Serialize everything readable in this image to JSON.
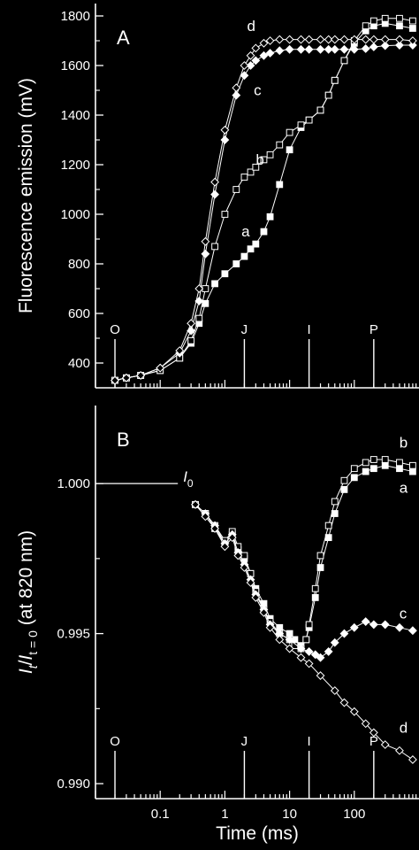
{
  "chart_data": [
    {
      "panel": "A",
      "type": "scatter",
      "x_scale": "log",
      "xlim": [
        0.01,
        1000
      ],
      "ylim": [
        300,
        1850
      ],
      "ylabel": "Fluorescence emission (mV)",
      "yticks": [
        400,
        600,
        800,
        1000,
        1200,
        1400,
        1600,
        1800
      ],
      "events": [
        {
          "label": "O",
          "x": 0.02
        },
        {
          "label": "J",
          "x": 2
        },
        {
          "label": "I",
          "x": 20
        },
        {
          "label": "P",
          "x": 200
        }
      ],
      "series": [
        {
          "name": "a",
          "marker": "filled-square",
          "x": [
            0.02,
            0.03,
            0.05,
            0.1,
            0.2,
            0.3,
            0.4,
            0.5,
            0.7,
            1,
            1.5,
            2,
            2.5,
            3,
            4,
            5,
            7,
            10,
            15,
            20,
            30,
            40,
            50,
            70,
            100,
            150,
            200,
            300,
            500,
            800
          ],
          "y": [
            330,
            340,
            350,
            370,
            420,
            480,
            560,
            640,
            720,
            760,
            800,
            830,
            860,
            880,
            930,
            990,
            1120,
            1260,
            1350,
            1380,
            1420,
            1480,
            1540,
            1620,
            1690,
            1740,
            1760,
            1770,
            1760,
            1750
          ]
        },
        {
          "name": "b",
          "marker": "open-square",
          "x": [
            0.02,
            0.03,
            0.05,
            0.1,
            0.2,
            0.3,
            0.4,
            0.5,
            0.7,
            1,
            1.5,
            2,
            2.5,
            3,
            4,
            5,
            7,
            10,
            15,
            20,
            30,
            40,
            50,
            70,
            100,
            150,
            200,
            300,
            500,
            800
          ],
          "y": [
            330,
            340,
            350,
            370,
            420,
            490,
            580,
            700,
            870,
            1000,
            1100,
            1150,
            1170,
            1190,
            1220,
            1240,
            1280,
            1330,
            1360,
            1380,
            1420,
            1480,
            1540,
            1620,
            1700,
            1760,
            1780,
            1790,
            1790,
            1780
          ]
        },
        {
          "name": "c",
          "marker": "filled-diamond",
          "x": [
            0.02,
            0.03,
            0.05,
            0.1,
            0.2,
            0.3,
            0.4,
            0.5,
            0.7,
            1,
            1.5,
            2,
            2.5,
            3,
            4,
            5,
            7,
            10,
            15,
            20,
            30,
            40,
            50,
            70,
            100,
            150,
            200,
            300,
            500,
            800
          ],
          "y": [
            330,
            340,
            350,
            380,
            440,
            530,
            650,
            840,
            1080,
            1300,
            1480,
            1560,
            1600,
            1620,
            1640,
            1650,
            1660,
            1665,
            1665,
            1665,
            1665,
            1665,
            1665,
            1665,
            1665,
            1668,
            1675,
            1680,
            1682,
            1682
          ]
        },
        {
          "name": "d",
          "marker": "open-diamond",
          "x": [
            0.02,
            0.03,
            0.05,
            0.1,
            0.2,
            0.3,
            0.4,
            0.5,
            0.7,
            1,
            1.5,
            2,
            2.5,
            3,
            4,
            5,
            7,
            10,
            15,
            20,
            30,
            40,
            50,
            70,
            100,
            150,
            200,
            300,
            500,
            800
          ],
          "y": [
            330,
            340,
            350,
            380,
            450,
            560,
            700,
            890,
            1130,
            1340,
            1510,
            1600,
            1640,
            1670,
            1690,
            1700,
            1705,
            1705,
            1705,
            1705,
            1705,
            1705,
            1705,
            1705,
            1705,
            1705,
            1705,
            1705,
            1705,
            1700
          ]
        }
      ]
    },
    {
      "panel": "B",
      "type": "scatter",
      "x_scale": "log",
      "xlim": [
        0.01,
        1000
      ],
      "ylim": [
        0.9895,
        1.0026
      ],
      "xlabel": "Time (ms)",
      "ylabel": "I_t / I_t=0 (at 820 nm)",
      "yticks": [
        0.99,
        0.995,
        1.0
      ],
      "xticks": [
        0.1,
        1,
        10,
        100
      ],
      "xtick_labels": [
        "0.1",
        "1",
        "10",
        "100"
      ],
      "reference": {
        "label": "I0",
        "y": 1.0
      },
      "events": [
        {
          "label": "O",
          "x": 0.02
        },
        {
          "label": "J",
          "x": 2
        },
        {
          "label": "I",
          "x": 20
        },
        {
          "label": "P",
          "x": 200
        }
      ],
      "series": [
        {
          "name": "a",
          "marker": "filled-square",
          "x": [
            0.35,
            0.5,
            0.7,
            1,
            1.3,
            1.6,
            2,
            2.5,
            3,
            4,
            5,
            7,
            10,
            12,
            15,
            18,
            20,
            25,
            30,
            40,
            50,
            70,
            100,
            150,
            200,
            300,
            500,
            800
          ],
          "y": [
            0.9993,
            0.999,
            0.9985,
            0.998,
            0.9983,
            0.9978,
            0.9975,
            0.997,
            0.9965,
            0.996,
            0.9955,
            0.9952,
            0.995,
            0.9948,
            0.9946,
            0.9948,
            0.9952,
            0.9962,
            0.9972,
            0.9982,
            0.999,
            0.9998,
            1.0002,
            1.0004,
            1.0005,
            1.0006,
            1.0005,
            1.0004
          ]
        },
        {
          "name": "b",
          "marker": "open-square",
          "x": [
            0.35,
            0.5,
            0.7,
            1,
            1.3,
            1.6,
            2,
            2.5,
            3,
            4,
            5,
            7,
            10,
            12,
            15,
            18,
            20,
            25,
            30,
            40,
            50,
            70,
            100,
            150,
            200,
            300,
            500,
            800
          ],
          "y": [
            0.9993,
            0.999,
            0.9986,
            0.9981,
            0.9984,
            0.9979,
            0.9976,
            0.997,
            0.9964,
            0.9958,
            0.9954,
            0.995,
            0.9948,
            0.9946,
            0.9945,
            0.9948,
            0.9953,
            0.9965,
            0.9976,
            0.9986,
            0.9994,
            1.0001,
            1.0005,
            1.0007,
            1.0008,
            1.0008,
            1.0007,
            1.0006
          ]
        },
        {
          "name": "c",
          "marker": "filled-diamond",
          "x": [
            0.35,
            0.5,
            0.7,
            1,
            1.3,
            1.6,
            2,
            2.5,
            3,
            4,
            5,
            7,
            10,
            15,
            20,
            25,
            30,
            40,
            50,
            70,
            100,
            150,
            200,
            300,
            500,
            800
          ],
          "y": [
            0.9993,
            0.999,
            0.9986,
            0.998,
            0.9983,
            0.9977,
            0.9973,
            0.9968,
            0.9963,
            0.9958,
            0.9953,
            0.995,
            0.9948,
            0.9945,
            0.9944,
            0.9943,
            0.9942,
            0.9944,
            0.9947,
            0.995,
            0.9952,
            0.9954,
            0.9953,
            0.9953,
            0.9952,
            0.9951
          ]
        },
        {
          "name": "d",
          "marker": "open-diamond",
          "x": [
            0.35,
            0.5,
            0.7,
            1,
            1.3,
            1.6,
            2,
            2.5,
            3,
            4,
            5,
            7,
            10,
            15,
            20,
            30,
            50,
            70,
            100,
            150,
            200,
            300,
            500,
            800
          ],
          "y": [
            0.9993,
            0.9989,
            0.9985,
            0.9979,
            0.9982,
            0.9976,
            0.9972,
            0.9967,
            0.9962,
            0.9957,
            0.9952,
            0.9948,
            0.9945,
            0.9942,
            0.994,
            0.9936,
            0.9931,
            0.9927,
            0.9924,
            0.992,
            0.9917,
            0.9913,
            0.9911,
            0.9908
          ]
        }
      ]
    }
  ]
}
